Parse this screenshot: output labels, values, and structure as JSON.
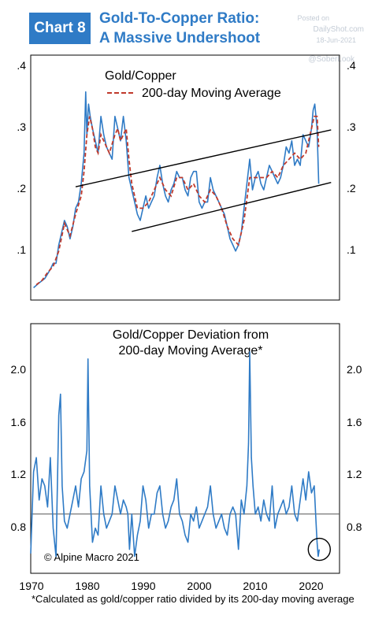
{
  "header": {
    "badge": "Chart 8",
    "title_line1": "Gold-To-Copper Ratio:",
    "title_line2": "A Massive Undershoot"
  },
  "watermark": {
    "line1": "Posted on",
    "line2": "DailyShot.com",
    "line3": "18-Jun-2021",
    "line4": "@SoberLook"
  },
  "colors": {
    "accent": "#2f7bc6",
    "series": "#2f7bc6",
    "ma": "#c0392b",
    "trend": "#000000"
  },
  "chart_data": [
    {
      "type": "line",
      "title": "Gold/Copper",
      "legend": "200-day Moving Average",
      "ylim": [
        0.0,
        0.4
      ],
      "yticks": [
        ".1",
        ".2",
        ".3",
        ".4"
      ],
      "series": [
        {
          "x": [
            1970.5,
            1971.5,
            1972.5,
            1973.5,
            1974.0,
            1974.5,
            1975.0,
            1975.5,
            1976.0,
            1976.5,
            1977.0,
            1977.5,
            1978.0,
            1978.5,
            1979.0,
            1979.5,
            1979.8,
            1980.0,
            1980.3,
            1980.6,
            1981.0,
            1981.5,
            1982.0,
            1982.5,
            1983.0,
            1983.5,
            1984.0,
            1984.5,
            1985.0,
            1985.5,
            1986.0,
            1986.5,
            1987.0,
            1987.5,
            1988.0,
            1988.5,
            1989.0,
            1989.5,
            1990.0,
            1990.5,
            1991.0,
            1991.5,
            1992.0,
            1992.5,
            1993.0,
            1993.5,
            1994.0,
            1994.5,
            1995.0,
            1995.5,
            1996.0,
            1996.5,
            1997.0,
            1997.5,
            1998.0,
            1998.5,
            1999.0,
            1999.5,
            2000.0,
            2000.5,
            2001.0,
            2001.5,
            2002.0,
            2002.5,
            2003.0,
            2003.5,
            2004.0,
            2004.5,
            2005.0,
            2005.5,
            2006.0,
            2006.5,
            2007.0,
            2007.5,
            2008.0,
            2008.5,
            2009.0,
            2009.5,
            2010.0,
            2010.5,
            2011.0,
            2011.5,
            2012.0,
            2012.5,
            2013.0,
            2013.5,
            2014.0,
            2014.5,
            2015.0,
            2015.5,
            2016.0,
            2016.5,
            2017.0,
            2017.5,
            2018.0,
            2018.5,
            2019.0,
            2019.5,
            2020.0,
            2020.3,
            2020.6,
            2021.0,
            2021.3
          ],
          "values": [
            0.02,
            0.028,
            0.035,
            0.05,
            0.06,
            0.06,
            0.09,
            0.11,
            0.13,
            0.12,
            0.1,
            0.12,
            0.15,
            0.16,
            0.19,
            0.24,
            0.34,
            0.27,
            0.32,
            0.3,
            0.28,
            0.26,
            0.24,
            0.3,
            0.27,
            0.25,
            0.24,
            0.23,
            0.3,
            0.28,
            0.26,
            0.3,
            0.26,
            0.2,
            0.18,
            0.16,
            0.14,
            0.13,
            0.15,
            0.17,
            0.15,
            0.16,
            0.17,
            0.2,
            0.22,
            0.19,
            0.17,
            0.16,
            0.18,
            0.19,
            0.21,
            0.2,
            0.2,
            0.18,
            0.17,
            0.2,
            0.21,
            0.21,
            0.16,
            0.15,
            0.16,
            0.16,
            0.2,
            0.18,
            0.17,
            0.16,
            0.15,
            0.14,
            0.12,
            0.1,
            0.09,
            0.08,
            0.09,
            0.11,
            0.15,
            0.19,
            0.23,
            0.18,
            0.2,
            0.21,
            0.19,
            0.18,
            0.2,
            0.22,
            0.21,
            0.2,
            0.19,
            0.2,
            0.22,
            0.25,
            0.24,
            0.26,
            0.22,
            0.23,
            0.22,
            0.27,
            0.26,
            0.25,
            0.28,
            0.31,
            0.32,
            0.28,
            0.19
          ]
        },
        {
          "name": "200-day Moving Average",
          "x": [
            1971.0,
            1972.0,
            1973.0,
            1974.0,
            1975.0,
            1976.0,
            1977.0,
            1978.0,
            1979.0,
            1979.5,
            1980.0,
            1980.5,
            1981.0,
            1981.5,
            1982.0,
            1982.5,
            1983.0,
            1984.0,
            1985.0,
            1985.5,
            1986.0,
            1986.5,
            1987.0,
            1987.5,
            1988.0,
            1988.5,
            1989.0,
            1990.0,
            1991.0,
            1992.0,
            1993.0,
            1994.0,
            1995.0,
            1996.0,
            1997.0,
            1998.0,
            1999.0,
            2000.0,
            2001.0,
            2002.0,
            2003.0,
            2004.0,
            2005.0,
            2006.0,
            2007.0,
            2008.0,
            2009.0,
            2009.5,
            2010.0,
            2011.0,
            2012.0,
            2013.0,
            2014.0,
            2015.0,
            2016.0,
            2017.0,
            2018.0,
            2019.0,
            2020.0,
            2020.5,
            2021.0,
            2021.3
          ],
          "values": [
            0.025,
            0.032,
            0.045,
            0.055,
            0.08,
            0.125,
            0.105,
            0.14,
            0.17,
            0.21,
            0.27,
            0.3,
            0.28,
            0.25,
            0.24,
            0.27,
            0.26,
            0.24,
            0.27,
            0.28,
            0.26,
            0.27,
            0.28,
            0.23,
            0.19,
            0.17,
            0.15,
            0.15,
            0.16,
            0.18,
            0.2,
            0.18,
            0.17,
            0.2,
            0.2,
            0.18,
            0.19,
            0.17,
            0.16,
            0.18,
            0.17,
            0.15,
            0.12,
            0.1,
            0.09,
            0.13,
            0.2,
            0.2,
            0.2,
            0.2,
            0.2,
            0.21,
            0.2,
            0.22,
            0.23,
            0.24,
            0.23,
            0.24,
            0.28,
            0.3,
            0.3,
            0.25
          ]
        }
      ],
      "trend_lines": [
        {
          "x": [
            1978.0,
            2023.5
          ],
          "y": [
            0.185,
            0.278
          ]
        },
        {
          "x": [
            1988.0,
            2023.5
          ],
          "y": [
            0.112,
            0.192
          ]
        }
      ]
    },
    {
      "type": "line",
      "title_line1": "Gold/Copper Deviation from",
      "title_line2": "200-day Moving Average*",
      "annotation": "© Alpine Macro 2021",
      "ylim": [
        0.58,
        2.35
      ],
      "yticks": [
        "0.8",
        "1.2",
        "1.6",
        "2.0"
      ],
      "reference_line": 1.0,
      "xticks": [
        "1970",
        "1980",
        "1990",
        "2000",
        "2010",
        "2020"
      ],
      "xlim": [
        1970,
        2025
      ],
      "series": [
        {
          "x": [
            1970.0,
            1970.5,
            1971.0,
            1971.5,
            1972.0,
            1972.5,
            1973.0,
            1973.5,
            1974.0,
            1974.5,
            1975.0,
            1975.3,
            1975.6,
            1976.0,
            1976.5,
            1977.0,
            1977.5,
            1978.0,
            1978.5,
            1979.0,
            1979.5,
            1980.0,
            1980.2,
            1980.5,
            1981.0,
            1981.5,
            1982.0,
            1982.5,
            1983.0,
            1983.5,
            1984.0,
            1984.5,
            1985.0,
            1985.5,
            1986.0,
            1986.5,
            1987.0,
            1987.3,
            1987.6,
            1988.0,
            1988.5,
            1989.0,
            1989.5,
            1990.0,
            1990.5,
            1991.0,
            1991.5,
            1992.0,
            1992.5,
            1993.0,
            1993.5,
            1994.0,
            1994.5,
            1995.0,
            1995.5,
            1996.0,
            1996.5,
            1997.0,
            1997.5,
            1998.0,
            1998.5,
            1999.0,
            1999.5,
            2000.0,
            2000.5,
            2001.0,
            2001.5,
            2002.0,
            2002.5,
            2003.0,
            2003.5,
            2004.0,
            2004.5,
            2005.0,
            2005.5,
            2006.0,
            2006.5,
            2007.0,
            2007.5,
            2008.0,
            2008.5,
            2008.8,
            2009.0,
            2009.3,
            2009.6,
            2010.0,
            2010.5,
            2011.0,
            2011.5,
            2012.0,
            2012.5,
            2013.0,
            2013.5,
            2014.0,
            2014.5,
            2015.0,
            2015.5,
            2016.0,
            2016.5,
            2017.0,
            2017.5,
            2018.0,
            2018.5,
            2019.0,
            2019.5,
            2020.0,
            2020.5,
            2020.8,
            2021.0,
            2021.2,
            2021.4
          ],
          "values": [
            0.72,
            1.3,
            1.4,
            1.1,
            1.25,
            1.2,
            1.05,
            1.4,
            0.9,
            0.7,
            1.7,
            1.85,
            1.2,
            0.95,
            0.9,
            1.0,
            1.1,
            1.2,
            1.05,
            1.25,
            1.3,
            1.45,
            2.1,
            1.2,
            0.8,
            0.9,
            0.85,
            1.2,
            1.0,
            0.9,
            0.95,
            1.0,
            1.2,
            1.1,
            1.0,
            1.1,
            1.05,
            1.0,
            0.75,
            1.0,
            0.7,
            0.85,
            0.95,
            1.2,
            1.1,
            0.9,
            1.0,
            1.0,
            1.15,
            1.2,
            1.0,
            0.9,
            0.95,
            1.05,
            1.1,
            1.25,
            1.0,
            0.95,
            0.85,
            0.8,
            1.0,
            0.95,
            1.05,
            0.9,
            0.95,
            1.0,
            1.05,
            1.2,
            1.0,
            0.9,
            0.95,
            1.0,
            0.9,
            0.85,
            1.0,
            1.05,
            1.0,
            0.75,
            1.1,
            1.0,
            1.2,
            1.5,
            2.15,
            1.4,
            1.2,
            1.0,
            1.05,
            0.95,
            1.1,
            1.0,
            0.95,
            1.2,
            0.9,
            1.0,
            1.05,
            1.1,
            1.0,
            1.05,
            1.2,
            1.0,
            0.95,
            1.1,
            1.25,
            1.1,
            1.3,
            1.15,
            1.2,
            0.95,
            0.8,
            0.7,
            0.75
          ]
        }
      ]
    }
  ],
  "footnote": "*Calculated as gold/copper ratio divided by its 200-day moving average"
}
